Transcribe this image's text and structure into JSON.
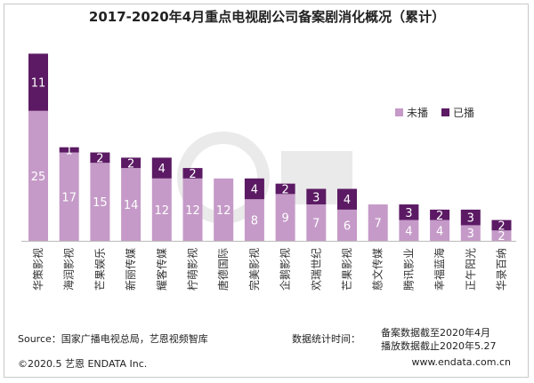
{
  "colors": {
    "unplayed": "#c59ac8",
    "played": "#5b1a63",
    "label_dark": "#ffffff"
  },
  "chart_data": {
    "type": "bar",
    "stacked": true,
    "title": "2017-2020年4月重点电视剧公司备案剧消化概况（累计）",
    "categories": [
      "华策影视",
      "海润影视",
      "芒果娱乐",
      "新丽传媒",
      "耀客传媒",
      "柠萌影视",
      "唐德国际",
      "完美影视",
      "企鹅影视",
      "欢瑞世纪",
      "芒果影视",
      "慈文传媒",
      "腾讯影业",
      "幸福蓝海",
      "正午阳光",
      "华录百纳"
    ],
    "series": [
      {
        "name": "未播",
        "values": [
          25,
          17,
          15,
          14,
          12,
          12,
          12,
          8,
          9,
          7,
          6,
          7,
          4,
          4,
          3,
          2
        ]
      },
      {
        "name": "已播",
        "values": [
          11,
          1,
          2,
          2,
          4,
          2,
          0,
          4,
          2,
          3,
          4,
          0,
          3,
          2,
          3,
          2
        ]
      }
    ],
    "legend_position": "right",
    "ylim": [
      0,
      36
    ]
  },
  "footer": {
    "source": "Source：国家广播电视总局，艺恩视频智库",
    "stat_label": "数据统计时间：",
    "stat_record": "备案数据截至2020年4月",
    "stat_play": "播放数据截止2020年5.27",
    "copyright": "©2020.5 艺恩 ENDATA Inc.",
    "website": "www.endata.com.cn"
  }
}
